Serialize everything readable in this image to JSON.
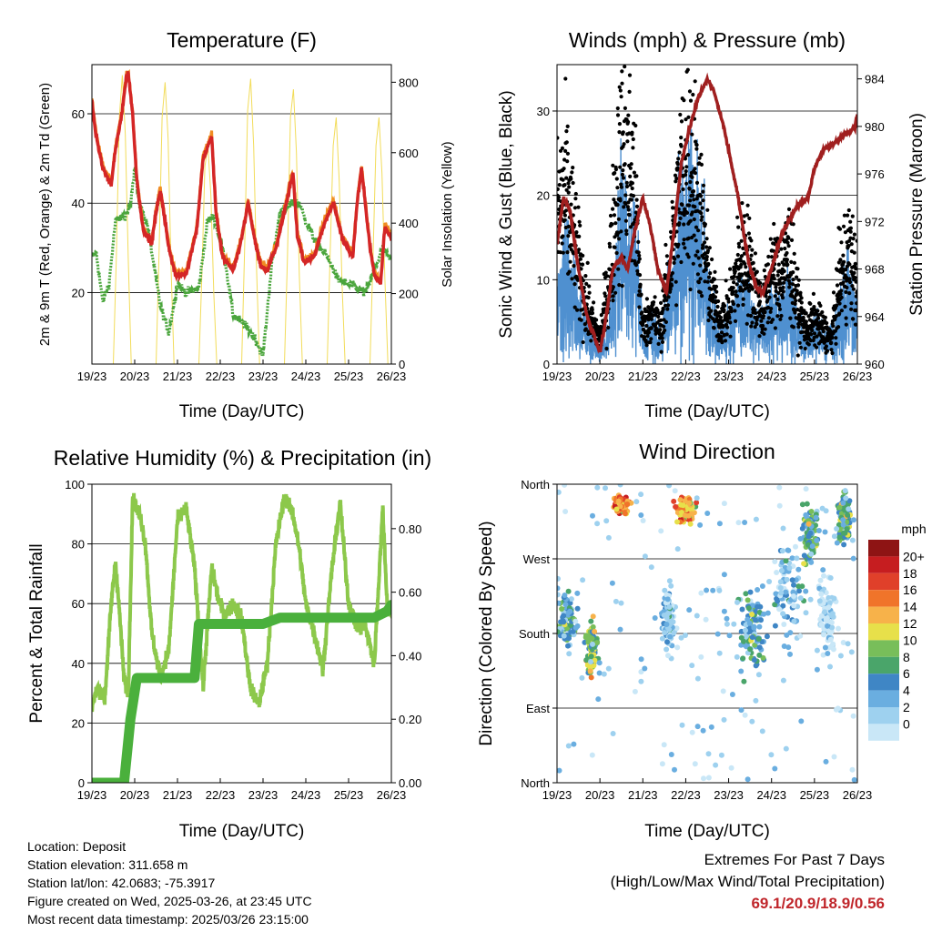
{
  "meta": {
    "location": "Location: Deposit",
    "elevation": "Station elevation: 311.658 m",
    "latlon": "Station lat/lon: 42.0683; -75.3917",
    "created": "Figure created on Wed, 2025-03-26, at 23:45 UTC",
    "recent": "Most recent data timestamp: 2025/03/26 23:15:00"
  },
  "extremes": {
    "title": "Extremes For Past 7 Days",
    "subtitle": "(High/Low/Max Wind/Total Precipitation)",
    "values": "69.1/20.9/18.9/0.56"
  },
  "colors": {
    "temp_2m": "#d42626",
    "temp_9m": "#f08c22",
    "dewpoint": "#4aa53c",
    "solar": "#f2dc5a",
    "wind": "#4f90d0",
    "gust": "#000000",
    "pressure": "#a01f1f",
    "rh": "#8cc84b",
    "precip": "#4ab03c",
    "speed_scale": [
      "#c9e7f7",
      "#9ed1ef",
      "#6aaee0",
      "#3f86c5",
      "#4aa56a",
      "#78be5a",
      "#e7e04a",
      "#f7b24a",
      "#f0742a",
      "#e0402a",
      "#c61d20",
      "#8e1414"
    ]
  },
  "chart_data": [
    {
      "type": "line",
      "id": "temperature",
      "title": "Temperature (F)",
      "xlabel": "Time (Day/UTC)",
      "ylabel": "2m & 9m T (Red, Orange) & 2m Td (Green)",
      "y2label": "Solar Insolation (Yellow)",
      "x_ticks": [
        "19/23",
        "20/23",
        "21/23",
        "22/23",
        "23/23",
        "24/23",
        "25/23",
        "26/23"
      ],
      "xlim": [
        0,
        7
      ],
      "ylim": [
        4,
        71
      ],
      "yticks": [
        20,
        40,
        60
      ],
      "y2lim": [
        0,
        850
      ],
      "y2ticks": [
        0,
        200,
        400,
        600,
        800
      ],
      "series": [
        {
          "name": "2m T",
          "axis": "left",
          "x": [
            0,
            0.1,
            0.25,
            0.45,
            0.55,
            0.7,
            0.8,
            0.85,
            0.95,
            1.05,
            1.2,
            1.4,
            1.5,
            1.6,
            1.8,
            1.95,
            2.2,
            2.45,
            2.6,
            2.8,
            2.9,
            3.05,
            3.3,
            3.5,
            3.65,
            3.8,
            3.95,
            4.1,
            4.3,
            4.5,
            4.7,
            4.8,
            4.95,
            5.2,
            5.45,
            5.65,
            5.85,
            6.1,
            6.2,
            6.3,
            6.5,
            6.6,
            6.75,
            6.85,
            7.0
          ],
          "y": [
            63,
            55,
            48,
            44,
            52,
            60,
            68,
            69,
            60,
            45,
            34,
            31,
            38,
            43,
            30,
            24,
            24,
            34,
            50,
            55,
            38,
            28,
            25,
            32,
            40,
            32,
            26,
            25,
            30,
            38,
            47,
            33,
            27,
            28,
            36,
            40,
            32,
            28,
            40,
            48,
            30,
            24,
            22,
            35,
            32
          ]
        },
        {
          "name": "2m Td",
          "axis": "left",
          "x": [
            0,
            0.1,
            0.25,
            0.4,
            0.55,
            0.7,
            0.8,
            0.9,
            1.0,
            1.1,
            1.3,
            1.45,
            1.6,
            1.8,
            2.0,
            2.2,
            2.5,
            2.7,
            2.85,
            3.1,
            3.3,
            3.55,
            3.8,
            4.0,
            4.2,
            4.4,
            4.55,
            4.7,
            4.85,
            5.0,
            5.2,
            5.5,
            5.75,
            5.95,
            6.2,
            6.4,
            6.6,
            6.8,
            7.0
          ],
          "y": [
            28,
            29,
            18,
            22,
            36,
            37,
            37,
            40,
            48,
            40,
            35,
            26,
            17,
            11,
            22,
            20,
            21,
            36,
            37,
            28,
            15,
            13,
            10,
            6,
            26,
            38,
            39,
            40,
            40,
            36,
            32,
            28,
            23,
            22,
            21,
            20,
            25,
            30,
            27
          ]
        },
        {
          "name": "Solar",
          "axis": "right",
          "x": [
            0.5,
            0.57,
            0.64,
            0.71,
            0.78,
            0.85,
            0.92,
            1.5,
            1.57,
            1.64,
            1.71,
            1.78,
            1.85,
            1.92,
            2.5,
            2.57,
            2.64,
            2.71,
            2.78,
            2.85,
            2.92,
            3.5,
            3.57,
            3.64,
            3.71,
            3.78,
            3.85,
            3.92,
            4.5,
            4.57,
            4.64,
            4.71,
            4.78,
            4.85,
            4.92,
            5.5,
            5.57,
            5.64,
            5.71,
            5.78,
            5.85,
            5.92,
            6.5,
            6.57,
            6.64,
            6.71,
            6.78,
            6.85,
            6.92
          ],
          "y": [
            0,
            300,
            700,
            820,
            650,
            300,
            0,
            0,
            320,
            700,
            800,
            640,
            280,
            0,
            0,
            250,
            560,
            620,
            480,
            200,
            0,
            0,
            330,
            720,
            810,
            620,
            260,
            0,
            0,
            300,
            700,
            780,
            600,
            250,
            0,
            0,
            320,
            620,
            700,
            520,
            220,
            0,
            0,
            300,
            620,
            700,
            540,
            240,
            0
          ]
        }
      ]
    },
    {
      "type": "line",
      "id": "winds",
      "title": "Winds (mph) & Pressure (mb)",
      "xlabel": "Time (Day/UTC)",
      "ylabel": "Sonic Wind & Gust (Blue, Black)",
      "y2label": "Station Pressure (Maroon)",
      "x_ticks": [
        "19/23",
        "20/23",
        "21/23",
        "22/23",
        "23/23",
        "24/23",
        "25/23",
        "26/23"
      ],
      "xlim": [
        0,
        7
      ],
      "ylim": [
        0,
        35.5
      ],
      "yticks": [
        0,
        10,
        20,
        30
      ],
      "y2lim": [
        960,
        985.2
      ],
      "y2ticks": [
        960,
        964,
        968,
        972,
        976,
        980,
        984
      ],
      "series": [
        {
          "name": "Wind",
          "axis": "left",
          "x": [
            0,
            0.2,
            0.4,
            0.6,
            0.8,
            1.0,
            1.2,
            1.4,
            1.6,
            1.8,
            2.0,
            2.2,
            2.4,
            2.6,
            2.8,
            3.0,
            3.2,
            3.4,
            3.6,
            3.8,
            4.0,
            4.2,
            4.4,
            4.6,
            4.8,
            5.0,
            5.2,
            5.4,
            5.6,
            5.8,
            6.0,
            6.2,
            6.4,
            6.6,
            6.8,
            7.0
          ],
          "y": [
            6,
            8,
            6,
            4,
            2,
            1,
            3,
            9,
            12,
            10,
            2,
            3,
            2,
            5,
            9,
            12,
            13,
            8,
            4,
            2,
            3,
            5,
            6,
            4,
            3,
            5,
            4,
            6,
            3,
            2,
            3,
            2,
            2,
            5,
            6,
            4
          ]
        },
        {
          "name": "Gust",
          "axis": "left",
          "x": [
            0,
            0.2,
            0.4,
            0.6,
            0.8,
            1.0,
            1.2,
            1.4,
            1.6,
            1.8,
            2.0,
            2.2,
            2.4,
            2.6,
            2.8,
            3.0,
            3.2,
            3.4,
            3.6,
            3.8,
            4.0,
            4.2,
            4.4,
            4.6,
            4.8,
            5.0,
            5.2,
            5.4,
            5.6,
            5.8,
            6.0,
            6.2,
            6.4,
            6.6,
            6.8,
            7.0
          ],
          "y": [
            17,
            20,
            14,
            9,
            5,
            3,
            9,
            21,
            25,
            20,
            4,
            6,
            4,
            10,
            18,
            24,
            22,
            15,
            8,
            5,
            6,
            11,
            13,
            9,
            6,
            11,
            10,
            13,
            7,
            4,
            5,
            4,
            3,
            10,
            13,
            9
          ]
        },
        {
          "name": "Pressure",
          "axis": "right",
          "x": [
            0,
            0.15,
            0.3,
            0.5,
            0.7,
            0.9,
            1.0,
            1.15,
            1.3,
            1.5,
            1.65,
            1.8,
            2.0,
            2.15,
            2.35,
            2.55,
            2.75,
            2.9,
            3.1,
            3.3,
            3.5,
            3.65,
            3.85,
            4.0,
            4.2,
            4.35,
            4.5,
            4.65,
            4.8,
            5.0,
            5.2,
            5.45,
            5.65,
            5.85,
            6.0,
            6.2,
            6.4,
            6.6,
            6.8,
            6.95,
            7.0
          ],
          "y": [
            970,
            974,
            973,
            968,
            964,
            962,
            961,
            964,
            968,
            969,
            968,
            971,
            974,
            972,
            968,
            966,
            972,
            977,
            980,
            982.5,
            984,
            983,
            980.5,
            978,
            974.5,
            971,
            968,
            966.5,
            966,
            968,
            970.5,
            972.5,
            973.5,
            974,
            976.5,
            978,
            978.5,
            979,
            979.5,
            980,
            981
          ]
        }
      ]
    },
    {
      "type": "line",
      "id": "humidity",
      "title": "Relative Humidity (%) & Precipitation (in)",
      "xlabel": "Time (Day/UTC)",
      "ylabel": "Percent & Total Rainfall",
      "x_ticks": [
        "19/23",
        "20/23",
        "21/23",
        "22/23",
        "23/23",
        "24/23",
        "25/23",
        "26/23"
      ],
      "xlim": [
        0,
        7
      ],
      "ylim": [
        0,
        100
      ],
      "yticks": [
        0,
        20,
        40,
        60,
        80,
        100
      ],
      "y2lim": [
        0,
        0.94
      ],
      "y2ticks": [
        0.0,
        0.2,
        0.4,
        0.6,
        0.8
      ],
      "y2ticklabels": [
        "0.00",
        "0.20",
        "0.40",
        "0.60",
        "0.80"
      ],
      "series": [
        {
          "name": "RH",
          "axis": "left",
          "x": [
            0,
            0.15,
            0.3,
            0.45,
            0.55,
            0.65,
            0.75,
            0.85,
            0.95,
            1.05,
            1.15,
            1.25,
            1.4,
            1.6,
            1.8,
            2.0,
            2.2,
            2.4,
            2.6,
            2.8,
            2.95,
            3.1,
            3.3,
            3.5,
            3.7,
            3.9,
            4.1,
            4.3,
            4.5,
            4.7,
            4.85,
            5.0,
            5.2,
            5.4,
            5.6,
            5.8,
            6.0,
            6.2,
            6.4,
            6.6,
            6.8,
            6.9,
            7.0
          ],
          "y": [
            26,
            32,
            28,
            60,
            74,
            56,
            35,
            30,
            95,
            92,
            88,
            80,
            50,
            35,
            45,
            88,
            92,
            72,
            32,
            72,
            62,
            56,
            60,
            55,
            32,
            26,
            40,
            80,
            96,
            90,
            78,
            60,
            50,
            38,
            70,
            94,
            60,
            52,
            52,
            40,
            92,
            60,
            56
          ]
        },
        {
          "name": "Precip",
          "axis": "right",
          "x": [
            0,
            0.5,
            0.75,
            0.9,
            1.05,
            1.2,
            1.6,
            2.0,
            2.4,
            2.5,
            2.7,
            3.2,
            3.6,
            4.0,
            4.4,
            4.9,
            5.3,
            5.7,
            6.1,
            6.6,
            6.9,
            7.0
          ],
          "y": [
            0,
            0,
            0,
            0.2,
            0.33,
            0.33,
            0.33,
            0.33,
            0.33,
            0.5,
            0.5,
            0.5,
            0.5,
            0.5,
            0.52,
            0.52,
            0.52,
            0.52,
            0.52,
            0.52,
            0.54,
            0.56
          ]
        }
      ]
    },
    {
      "type": "scatter",
      "id": "direction",
      "title": "Wind Direction",
      "xlabel": "Time (Day/UTC)",
      "ylabel": "Direction (Colored By Speed)",
      "x_ticks": [
        "19/23",
        "20/23",
        "21/23",
        "22/23",
        "23/23",
        "24/23",
        "25/23",
        "26/23"
      ],
      "xlim": [
        0,
        7
      ],
      "ylim": [
        0,
        360
      ],
      "yticks": [
        0,
        90,
        180,
        270,
        360
      ],
      "yticklabels": [
        "North",
        "East",
        "South",
        "West",
        "North"
      ],
      "legend": {
        "title": "mph",
        "labels": [
          "20+",
          "18",
          "16",
          "14",
          "12",
          "10",
          "8",
          "6",
          "4",
          "2",
          "0"
        ],
        "position": "right"
      },
      "clusters": [
        {
          "x": 0.25,
          "y": 195,
          "sx": 0.18,
          "sy": 25,
          "speed": 6
        },
        {
          "x": 0.8,
          "y": 160,
          "sx": 0.12,
          "sy": 25,
          "speed": 10
        },
        {
          "x": 1.5,
          "y": 335,
          "sx": 0.15,
          "sy": 8,
          "speed": 16
        },
        {
          "x": 3.0,
          "y": 330,
          "sx": 0.2,
          "sy": 12,
          "speed": 14
        },
        {
          "x": 2.6,
          "y": 200,
          "sx": 0.15,
          "sy": 35,
          "speed": 3
        },
        {
          "x": 4.6,
          "y": 180,
          "sx": 0.25,
          "sy": 40,
          "speed": 6
        },
        {
          "x": 5.4,
          "y": 230,
          "sx": 0.3,
          "sy": 45,
          "speed": 3
        },
        {
          "x": 5.9,
          "y": 300,
          "sx": 0.15,
          "sy": 30,
          "speed": 7
        },
        {
          "x": 6.7,
          "y": 320,
          "sx": 0.12,
          "sy": 25,
          "speed": 8
        },
        {
          "x": 6.3,
          "y": 200,
          "sx": 0.15,
          "sy": 40,
          "speed": 1
        }
      ]
    }
  ]
}
